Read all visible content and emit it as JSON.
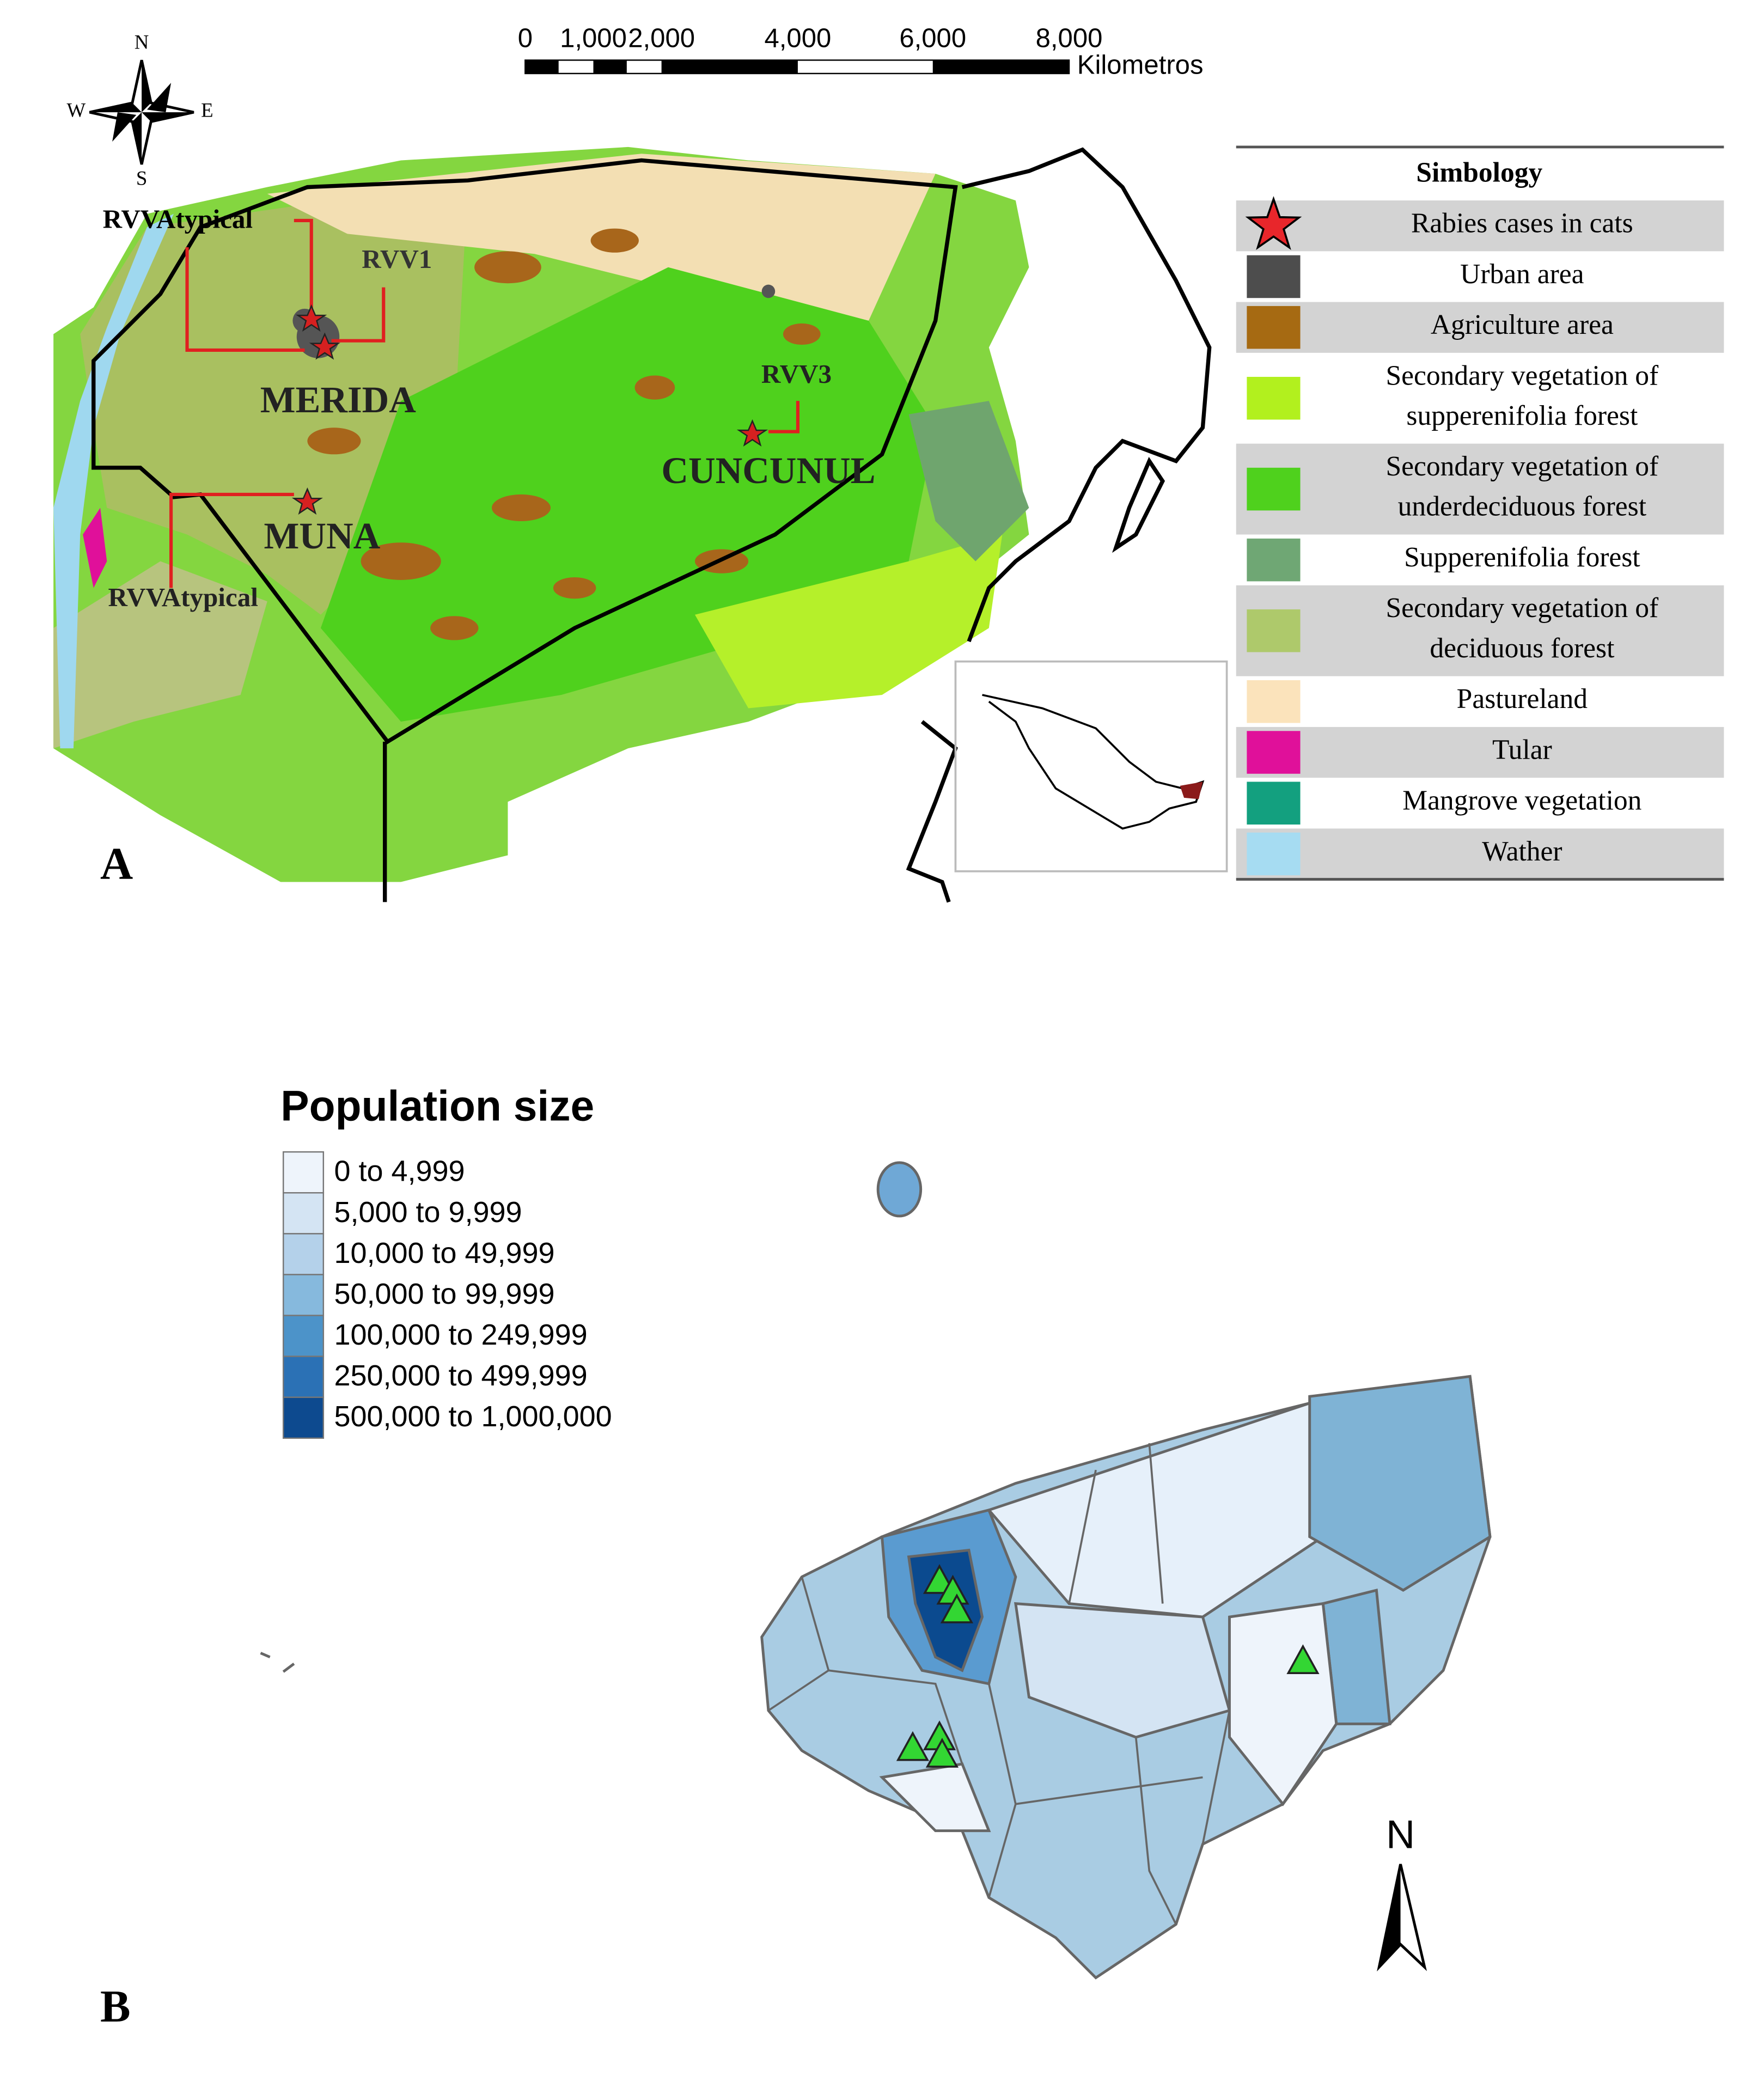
{
  "panel_a": {
    "label": "A",
    "compass": {
      "north": "N",
      "west": "W",
      "east": "E",
      "south": "S"
    },
    "scale_bar": {
      "ticks": [
        "0",
        "1,000",
        "2,000",
        "4,000",
        "6,000",
        "8,000"
      ],
      "unit": "Kilometros"
    },
    "places": {
      "rvv_atypical_north": "RVVAtypical",
      "rvv1": "RVV1",
      "merida": "MERIDA",
      "rvv3": "RVV3",
      "cuncunul": "CUNCUNUL",
      "muna": "MUNA",
      "rvv_atypical_south": "RVVAtypical"
    },
    "legend": {
      "title": "Simbology",
      "items": [
        {
          "label": [
            "Rabies cases in cats"
          ],
          "marker": "star",
          "color": "#e8262b"
        },
        {
          "label": [
            "Urban area"
          ],
          "marker": "square",
          "color": "#4d4d4d"
        },
        {
          "label": [
            "Agriculture area"
          ],
          "marker": "square",
          "color": "#a66a12"
        },
        {
          "label": [
            "Secondary vegetation of",
            "supperenifolia forest"
          ],
          "marker": "square",
          "color": "#b2f01e"
        },
        {
          "label": [
            "Secondary vegetation of",
            "underdeciduous forest"
          ],
          "marker": "square",
          "color": "#4fd11d"
        },
        {
          "label": [
            "Supperenifolia forest"
          ],
          "marker": "square",
          "color": "#6fa774"
        },
        {
          "label": [
            "Secondary vegetation of",
            "deciduous forest"
          ],
          "marker": "square",
          "color": "#aec96b"
        },
        {
          "label": [
            "Pastureland"
          ],
          "marker": "square",
          "color": "#fbe3bb"
        },
        {
          "label": [
            "Tular"
          ],
          "marker": "square",
          "color": "#e0109a"
        },
        {
          "label": [
            "Mangrove vegetation"
          ],
          "marker": "square",
          "color": "#13a07f"
        },
        {
          "label": [
            "Wather"
          ],
          "marker": "square",
          "color": "#a6dcf2"
        }
      ]
    }
  },
  "panel_b": {
    "label": "B",
    "north": "N",
    "legend": {
      "title": "Population size",
      "items": [
        {
          "label": "0 to 4,999",
          "color": "#eef4fb"
        },
        {
          "label": "5,000 to 9,999",
          "color": "#d4e4f3"
        },
        {
          "label": "10,000 to 49,999",
          "color": "#b4d1ea"
        },
        {
          "label": "50,000 to 99,999",
          "color": "#86b9dd"
        },
        {
          "label": "100,000 to 249,999",
          "color": "#4c93c9"
        },
        {
          "label": "250,000 to 499,999",
          "color": "#2b71b5"
        },
        {
          "label": "500,000 to 1,000,000",
          "color": "#0d4a8f"
        }
      ]
    }
  }
}
